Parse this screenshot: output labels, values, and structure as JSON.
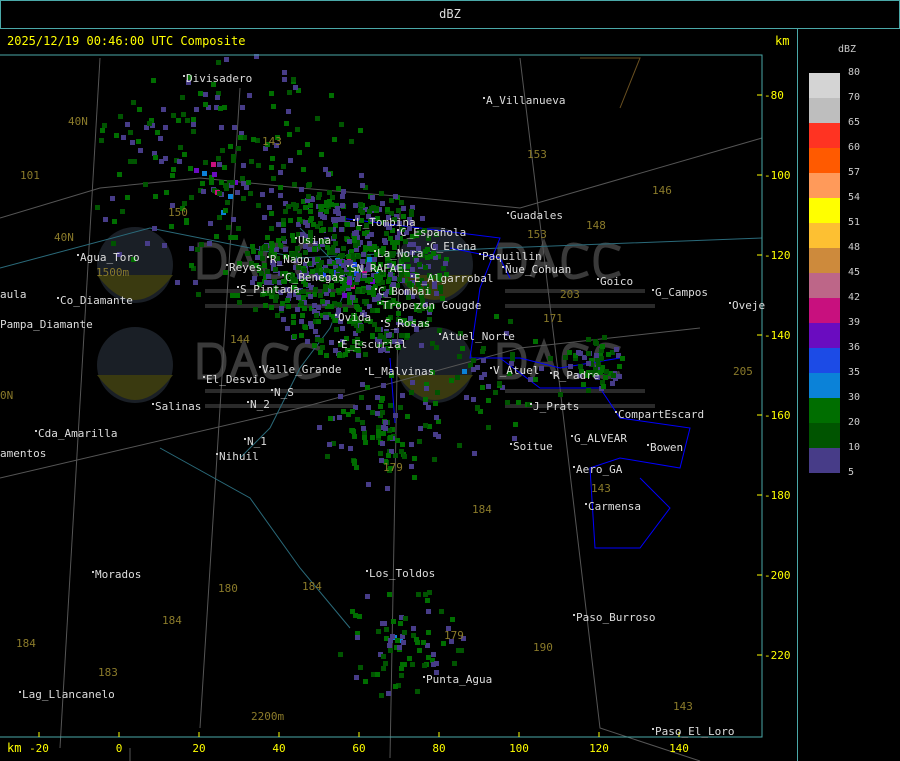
{
  "window_title": "dBZ",
  "map": {
    "timestamp": "2025/12/19 00:46:00 UTC Composite",
    "unit_top": "km",
    "unit_bottom": "km",
    "x_ticks": [
      "-20",
      "0",
      "20",
      "40",
      "60",
      "80",
      "100",
      "120",
      "140"
    ],
    "y_ticks": [
      "-80",
      "-100",
      "-120",
      "-140",
      "-160",
      "-180",
      "-200",
      "-220"
    ],
    "watermark": {
      "logo": "DACC",
      "line1": "Dirección de Agricultura",
      "line2": "y Contingencias Climáticas"
    },
    "places": [
      "Divisadero",
      "A_Villanueva",
      "Guadales",
      "C_Española",
      "L_Tombina",
      "Usina",
      "La_Nora",
      "C_Elena",
      "Paquillin",
      "Ñue_Cohuan",
      "Reyes",
      "R_Nago",
      "C_Benegas",
      "SN_RAFAEL",
      "E_Algarrobal",
      "C_Bombai",
      "Goico",
      "G_Campos",
      "S_Pintada",
      "Tropezon Gougde",
      "Ovida",
      "Oveje",
      "S_Rosas",
      "Atuel_Norte",
      "E_Escurial",
      "Valle_Grande",
      "L_Malvinas",
      "V_Atuel",
      "R_Padre",
      "El_Desvio",
      "Salinas",
      "N_2",
      "J_Prats",
      "CompartEscard",
      "N_S",
      "N_1",
      "Nihuil",
      "G_ALVEAR",
      "Soitue",
      "Bowen",
      "Aero_GA",
      "Carmensa",
      "Los_Toldos",
      "Morados",
      "Paso_Burroso",
      "Punta_Agua",
      "Lag_Llancanelo",
      "Paso_El_Loro",
      "Agua_Toro",
      "Pampa_Diamante",
      "Cda_Amarilla",
      "amentos",
      "aula",
      "Co_Diamante"
    ],
    "roads": [
      "143",
      "153",
      "146",
      "101",
      "40N",
      "40N",
      "150",
      "153",
      "203",
      "148",
      "171",
      "144",
      "205",
      "179",
      "184",
      "143",
      "180",
      "184",
      "184",
      "184",
      "183",
      "179",
      "190",
      "143",
      "2200m",
      "1500m",
      "0N"
    ]
  },
  "legend": {
    "unit": "dBZ",
    "bins": [
      {
        "label": "80",
        "color": "#d4d4d4"
      },
      {
        "label": "70",
        "color": "#bebebe"
      },
      {
        "label": "65",
        "color": "#ff3322"
      },
      {
        "label": "60",
        "color": "#ff5a00"
      },
      {
        "label": "57",
        "color": "#ff9a5a"
      },
      {
        "label": "54",
        "color": "#ffff00"
      },
      {
        "label": "51",
        "color": "#fdc032"
      },
      {
        "label": "48",
        "color": "#cd8a3c"
      },
      {
        "label": "45",
        "color": "#bd6688"
      },
      {
        "label": "42",
        "color": "#c8107e"
      },
      {
        "label": "39",
        "color": "#6a0cc0"
      },
      {
        "label": "36",
        "color": "#1c4be6"
      },
      {
        "label": "35",
        "color": "#0b82d8"
      },
      {
        "label": "30",
        "color": "#006e00"
      },
      {
        "label": "20",
        "color": "#005400"
      },
      {
        "label": "10",
        "color": "#473c88"
      },
      {
        "label": "5",
        "color": ""
      }
    ]
  }
}
